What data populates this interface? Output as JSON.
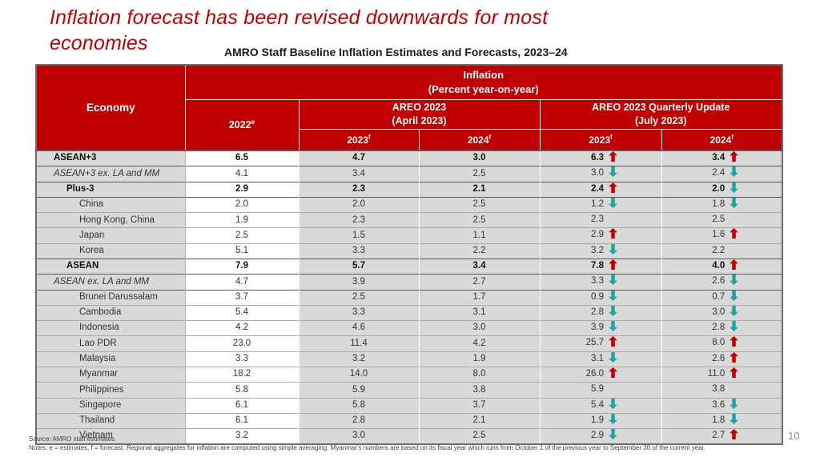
{
  "page": {
    "title_line1": "Inflation forecast has been revised downwards for most",
    "title_line2": "economies",
    "subtitle": "AMRO Staff Baseline Inflation Estimates and Forecasts, 2023–24",
    "page_number": "10"
  },
  "footer": {
    "source": "Source: AMRO staff estimates.",
    "notes": "Notes: e = estimates, f = forecast. Regional aggregates for inflation are computed using simple averaging. Myanmar's numbers are based on its fiscal year which runs from October 1 of the previous year to September 30 of the current year."
  },
  "colors": {
    "header_red": "#C00000",
    "title_red": "#C00000",
    "row_shade": "#D9D9D9",
    "up_arrow": "#C00000",
    "down_arrow": "#21A3A3"
  },
  "table": {
    "economy_header": "Economy",
    "inflation_line1": "Inflation",
    "inflation_line2": "(Percent year-on-year)",
    "col2022": {
      "label": "2022",
      "sup": "e"
    },
    "areo": {
      "line1": "AREO 2023",
      "line2": "(April 2023)"
    },
    "update": {
      "line1": "AREO 2023 Quarterly Update",
      "line2": "(July 2023)"
    },
    "subcols": [
      {
        "label": "2023",
        "sup": "f"
      },
      {
        "label": "2024",
        "sup": "f"
      },
      {
        "label": "2023",
        "sup": "f"
      },
      {
        "label": "2024",
        "sup": "f"
      }
    ],
    "rows": [
      {
        "economy": "ASEAN+3",
        "style": "bold",
        "indent": 1,
        "dark_top": true,
        "v2022": "6.5",
        "areo2023": "4.7",
        "areo2024": "3.0",
        "upd2023": "6.3",
        "upd2023_arrow": "up",
        "upd2024": "3.4",
        "upd2024_arrow": "up"
      },
      {
        "economy": "ASEAN+3 ex. LA and MM",
        "style": "italic",
        "indent": 1,
        "dark_top": true,
        "v2022": "4.1",
        "areo2023": "3.4",
        "areo2024": "2.5",
        "upd2023": "3.0",
        "upd2023_arrow": "down",
        "upd2024": "2.4",
        "upd2024_arrow": "down"
      },
      {
        "economy": "Plus-3",
        "style": "bold",
        "indent": 2,
        "dark_top": true,
        "v2022": "2.9",
        "areo2023": "2.3",
        "areo2024": "2.1",
        "upd2023": "2.4",
        "upd2023_arrow": "up",
        "upd2024": "2.0",
        "upd2024_arrow": "down"
      },
      {
        "economy": "China",
        "style": "country",
        "indent": 3,
        "dark_top": true,
        "v2022": "2.0",
        "areo2023": "2.0",
        "areo2024": "2.5",
        "upd2023": "1.2",
        "upd2023_arrow": "down",
        "upd2024": "1.8",
        "upd2024_arrow": "down"
      },
      {
        "economy": "Hong Kong, China",
        "style": "country",
        "indent": 3,
        "dark_top": false,
        "v2022": "1.9",
        "areo2023": "2.3",
        "areo2024": "2.5",
        "upd2023": "2.3",
        "upd2023_arrow": "",
        "upd2024": "2.5",
        "upd2024_arrow": ""
      },
      {
        "economy": "Japan",
        "style": "country",
        "indent": 3,
        "dark_top": false,
        "v2022": "2.5",
        "areo2023": "1.5",
        "areo2024": "1.1",
        "upd2023": "2.9",
        "upd2023_arrow": "up",
        "upd2024": "1.6",
        "upd2024_arrow": "up"
      },
      {
        "economy": "Korea",
        "style": "country",
        "indent": 3,
        "dark_top": false,
        "v2022": "5.1",
        "areo2023": "3.3",
        "areo2024": "2.2",
        "upd2023": "3.2",
        "upd2023_arrow": "down",
        "upd2024": "2.2",
        "upd2024_arrow": ""
      },
      {
        "economy": "ASEAN",
        "style": "bold",
        "indent": 2,
        "dark_top": true,
        "v2022": "7.9",
        "areo2023": "5.7",
        "areo2024": "3.4",
        "upd2023": "7.8",
        "upd2023_arrow": "up",
        "upd2024": "4.0",
        "upd2024_arrow": "up"
      },
      {
        "economy": "ASEAN ex. LA and MM",
        "style": "italic",
        "indent": 1,
        "dark_top": true,
        "v2022": "4.7",
        "areo2023": "3.9",
        "areo2024": "2.7",
        "upd2023": "3.3",
        "upd2023_arrow": "down",
        "upd2024": "2.6",
        "upd2024_arrow": "down"
      },
      {
        "economy": "Brunei Darussalam",
        "style": "country",
        "indent": 3,
        "dark_top": true,
        "v2022": "3.7",
        "areo2023": "2.5",
        "areo2024": "1.7",
        "upd2023": "0.9",
        "upd2023_arrow": "down",
        "upd2024": "0.7",
        "upd2024_arrow": "down"
      },
      {
        "economy": "Cambodia",
        "style": "country",
        "indent": 3,
        "dark_top": false,
        "v2022": "5.4",
        "areo2023": "3.3",
        "areo2024": "3.1",
        "upd2023": "2.8",
        "upd2023_arrow": "down",
        "upd2024": "3.0",
        "upd2024_arrow": "down"
      },
      {
        "economy": "Indonesia",
        "style": "country",
        "indent": 3,
        "dark_top": false,
        "v2022": "4.2",
        "areo2023": "4.6",
        "areo2024": "3.0",
        "upd2023": "3.9",
        "upd2023_arrow": "down",
        "upd2024": "2.8",
        "upd2024_arrow": "down"
      },
      {
        "economy": "Lao PDR",
        "style": "country",
        "indent": 3,
        "dark_top": false,
        "v2022": "23.0",
        "areo2023": "11.4",
        "areo2024": "4.2",
        "upd2023": "25.7",
        "upd2023_arrow": "up",
        "upd2024": "8.0",
        "upd2024_arrow": "up"
      },
      {
        "economy": "Malaysia",
        "style": "country",
        "indent": 3,
        "dark_top": false,
        "v2022": "3.3",
        "areo2023": "3.2",
        "areo2024": "1.9",
        "upd2023": "3.1",
        "upd2023_arrow": "down",
        "upd2024": "2.6",
        "upd2024_arrow": "up"
      },
      {
        "economy": "Myanmar",
        "style": "country",
        "indent": 3,
        "dark_top": false,
        "v2022": "18.2",
        "areo2023": "14.0",
        "areo2024": "8.0",
        "upd2023": "26.0",
        "upd2023_arrow": "up",
        "upd2024": "11.0",
        "upd2024_arrow": "up"
      },
      {
        "economy": "Philippines",
        "style": "country",
        "indent": 3,
        "dark_top": false,
        "v2022": "5.8",
        "areo2023": "5.9",
        "areo2024": "3.8",
        "upd2023": "5.9",
        "upd2023_arrow": "",
        "upd2024": "3.8",
        "upd2024_arrow": ""
      },
      {
        "economy": "Singapore",
        "style": "country",
        "indent": 3,
        "dark_top": false,
        "v2022": "6.1",
        "areo2023": "5.8",
        "areo2024": "3.7",
        "upd2023": "5.4",
        "upd2023_arrow": "down",
        "upd2024": "3.6",
        "upd2024_arrow": "down"
      },
      {
        "economy": "Thailand",
        "style": "country",
        "indent": 3,
        "dark_top": false,
        "v2022": "6.1",
        "areo2023": "2.8",
        "areo2024": "2.1",
        "upd2023": "1.9",
        "upd2023_arrow": "down",
        "upd2024": "1.8",
        "upd2024_arrow": "down"
      },
      {
        "economy": "Vietnam",
        "style": "country",
        "indent": 3,
        "dark_top": false,
        "v2022": "3.2",
        "areo2023": "3.0",
        "areo2024": "2.5",
        "upd2023": "2.9",
        "upd2023_arrow": "down",
        "upd2024": "2.7",
        "upd2024_arrow": "up"
      }
    ]
  }
}
